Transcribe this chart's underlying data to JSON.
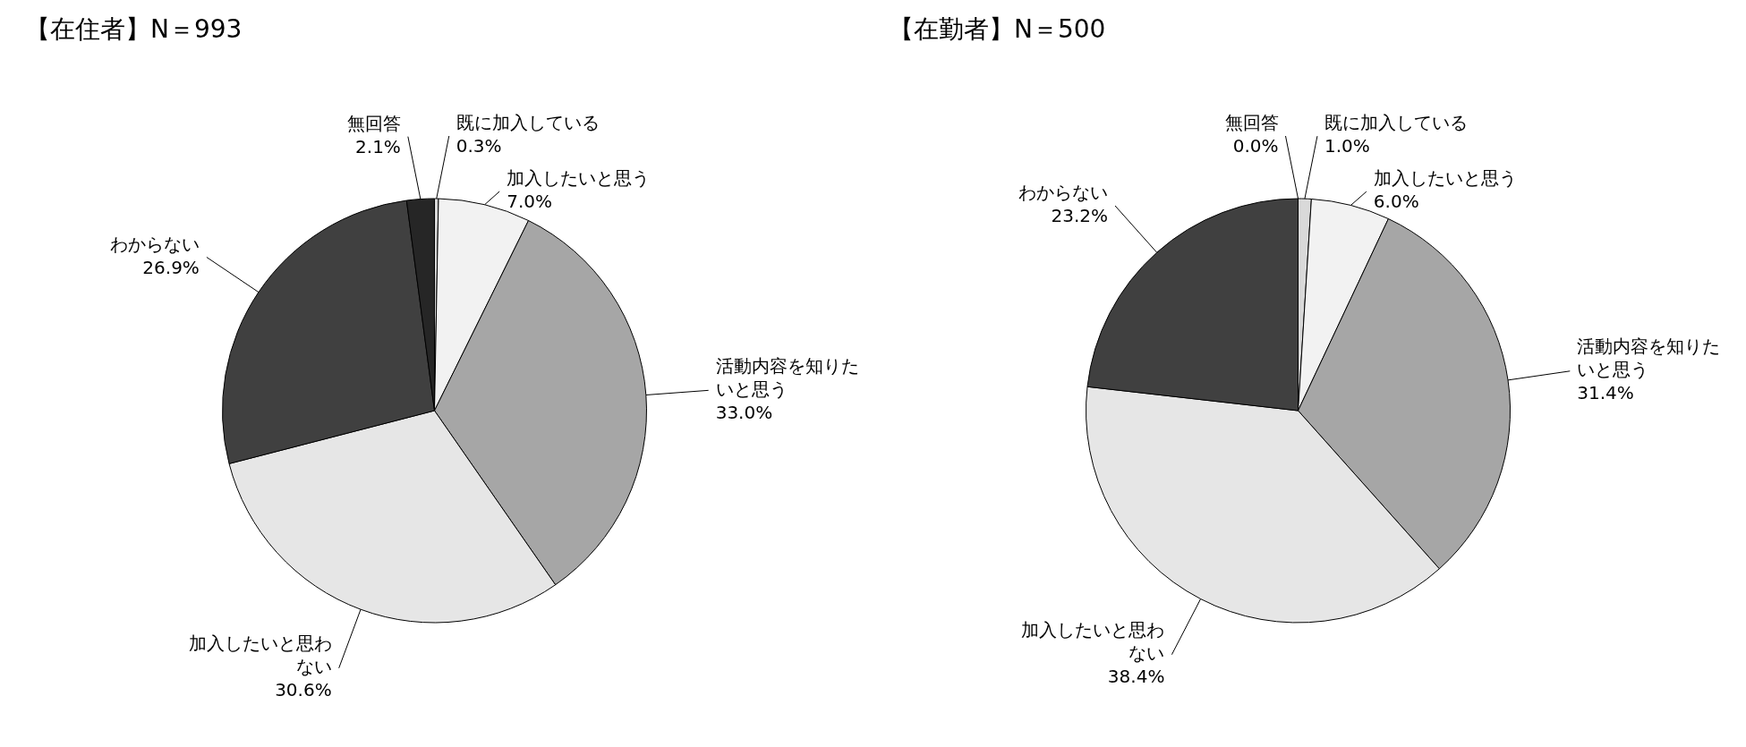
{
  "chart_data": [
    {
      "type": "pie",
      "title": "【在住者】N＝993",
      "categories": [
        "既に加入している",
        "加入したいと思う",
        "活動内容を知りたいと思う",
        "加入したいと思わない",
        "わからない",
        "無回答"
      ],
      "values": [
        0.3,
        7.0,
        33.0,
        30.6,
        26.9,
        2.1
      ],
      "value_labels": [
        "0.3%",
        "7.0%",
        "33.0%",
        "30.6%",
        "26.9%",
        "2.1%"
      ],
      "colors": [
        "#d9d9d9",
        "#f2f2f2",
        "#a6a6a6",
        "#e6e6e6",
        "#404040",
        "#262626"
      ]
    },
    {
      "type": "pie",
      "title": "【在勤者】N＝500",
      "categories": [
        "既に加入している",
        "加入したいと思う",
        "活動内容を知りたいと思う",
        "加入したいと思わない",
        "わからない",
        "無回答"
      ],
      "values": [
        1.0,
        6.0,
        31.4,
        38.4,
        23.2,
        0.0
      ],
      "value_labels": [
        "1.0%",
        "6.0%",
        "31.4%",
        "38.4%",
        "23.2%",
        "0.0%"
      ],
      "colors": [
        "#d9d9d9",
        "#f2f2f2",
        "#a6a6a6",
        "#e6e6e6",
        "#404040",
        "#262626"
      ]
    }
  ]
}
